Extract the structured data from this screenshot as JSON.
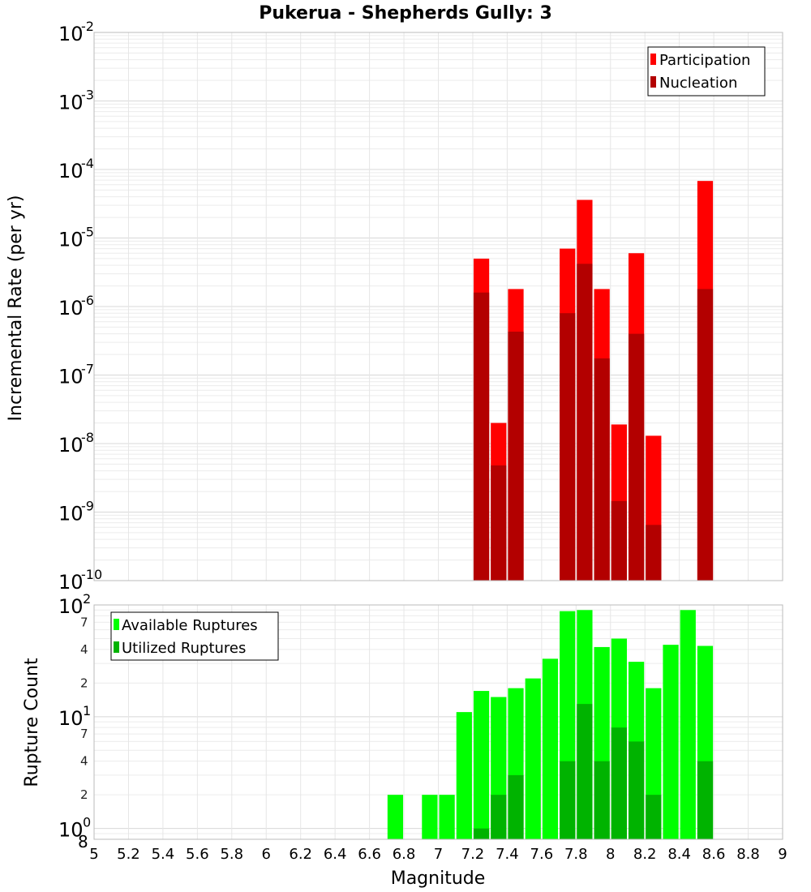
{
  "chart_data": [
    {
      "type": "bar",
      "title": "Pukerua - Shepherds Gully: 3",
      "xlabel": "",
      "ylabel": "Incremental Rate (per yr)",
      "yscale": "log",
      "ylim": [
        1e-10,
        0.01
      ],
      "xlim": [
        5,
        9
      ],
      "grid": true,
      "legend_position": "top-right",
      "y_major_ticks": [
        {
          "base": "10",
          "exp": "-2"
        },
        {
          "base": "10",
          "exp": "-3"
        },
        {
          "base": "10",
          "exp": "-4"
        },
        {
          "base": "10",
          "exp": "-5"
        },
        {
          "base": "10",
          "exp": "-6"
        },
        {
          "base": "10",
          "exp": "-7"
        },
        {
          "base": "10",
          "exp": "-8"
        },
        {
          "base": "10",
          "exp": "-9"
        },
        {
          "base": "10",
          "exp": "-10"
        }
      ],
      "series": [
        {
          "name": "Participation",
          "color": "#ff0000",
          "x": [
            7.25,
            7.35,
            7.45,
            7.75,
            7.85,
            7.95,
            8.05,
            8.15,
            8.25,
            8.55
          ],
          "values": [
            5e-06,
            2e-08,
            1.8e-06,
            7e-06,
            3.6e-05,
            1.8e-06,
            1.9e-08,
            6e-06,
            1.3e-08,
            6.8e-05
          ]
        },
        {
          "name": "Nucleation",
          "color": "#b30000",
          "x": [
            7.25,
            7.35,
            7.45,
            7.75,
            7.85,
            7.95,
            8.05,
            8.15,
            8.25,
            8.55
          ],
          "values": [
            1.6e-06,
            4.8e-09,
            4.3e-07,
            8e-07,
            4.2e-06,
            1.75e-07,
            1.45e-09,
            4e-07,
            6.5e-10,
            1.8e-06
          ]
        }
      ]
    },
    {
      "type": "bar",
      "xlabel": "Magnitude",
      "ylabel": "Rupture Count",
      "yscale": "log",
      "ylim": [
        0.8,
        100
      ],
      "xlim": [
        5,
        9
      ],
      "grid": true,
      "legend_position": "top-left",
      "x_ticks": [
        "5",
        "5.2",
        "5.4",
        "5.6",
        "5.8",
        "6",
        "6.2",
        "6.4",
        "6.6",
        "6.8",
        "7",
        "7.2",
        "7.4",
        "7.6",
        "7.8",
        "8",
        "8.2",
        "8.4",
        "8.6",
        "8.8",
        "9"
      ],
      "y_major_ticks": [
        {
          "base": "10",
          "exp": "2"
        },
        {
          "base": "10",
          "exp": "1"
        },
        {
          "base": "10",
          "exp": "0"
        }
      ],
      "y_minor_ticks": [
        "7",
        "4",
        "2",
        "7",
        "4",
        "2",
        "8"
      ],
      "series": [
        {
          "name": "Available Ruptures",
          "color": "#00ff00",
          "x": [
            6.75,
            6.95,
            7.05,
            7.15,
            7.25,
            7.35,
            7.45,
            7.55,
            7.65,
            7.75,
            7.85,
            7.95,
            8.05,
            8.15,
            8.25,
            8.35,
            8.45,
            8.55
          ],
          "values": [
            2,
            2,
            2,
            11,
            17,
            15,
            18,
            22,
            33,
            88,
            90,
            42,
            50,
            31,
            18,
            44,
            90,
            43
          ]
        },
        {
          "name": "Utilized Ruptures",
          "color": "#00b300",
          "x": [
            7.25,
            7.35,
            7.45,
            7.75,
            7.85,
            7.95,
            8.05,
            8.15,
            8.25,
            8.55
          ],
          "values": [
            1,
            2,
            3,
            4,
            13,
            4,
            8,
            6,
            2,
            4
          ]
        }
      ]
    }
  ]
}
